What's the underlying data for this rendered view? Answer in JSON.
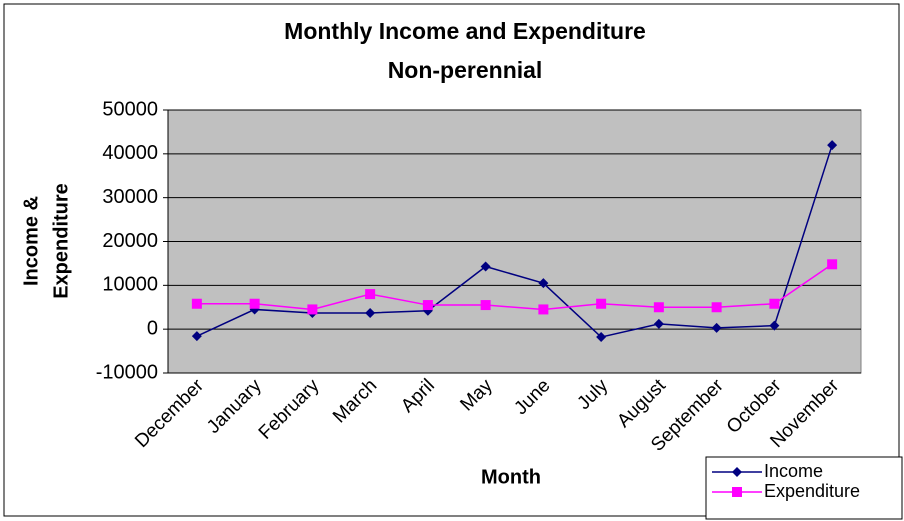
{
  "chart_data": {
    "type": "line",
    "title": "Monthly Income and Expenditure",
    "subtitle": "Non-perennial",
    "x_label": "Month",
    "y_label": [
      "Income &",
      "Expenditure"
    ],
    "categories": [
      "December",
      "January",
      "February",
      "March",
      "April",
      "May",
      "June",
      "July",
      "August",
      "September",
      "October",
      "November"
    ],
    "series": [
      {
        "name": "Income",
        "color": "#000080",
        "marker": "diamond",
        "values": [
          -1600,
          4500,
          3700,
          3700,
          4200,
          14300,
          10500,
          -1800,
          1200,
          300,
          800,
          42000
        ]
      },
      {
        "name": "Expenditure",
        "color": "#ff00ff",
        "marker": "square",
        "values": [
          5800,
          5800,
          4500,
          8000,
          5500,
          5500,
          4500,
          5800,
          5000,
          5000,
          5800,
          14800
        ]
      }
    ],
    "ylim": [
      -10000,
      50000
    ],
    "yticks": [
      -10000,
      0,
      10000,
      20000,
      30000,
      40000,
      50000
    ],
    "grid": true,
    "legend": "bottom-right"
  }
}
